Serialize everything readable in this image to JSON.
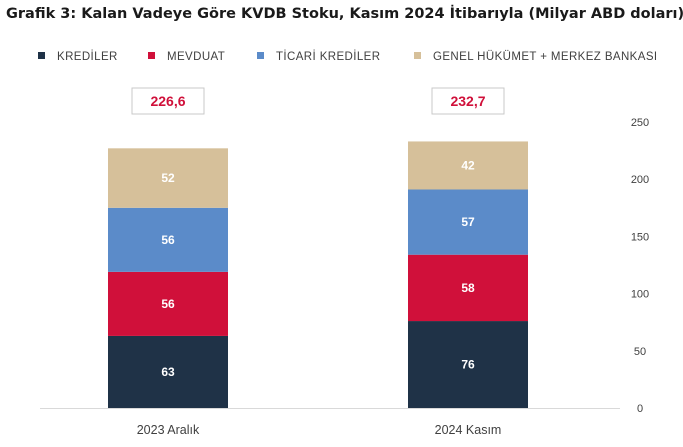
{
  "title": "Grafik 3: Kalan Vadeye Göre KVDB Stoku, Kasım 2024 İtibarıyla (Milyar ABD doları)",
  "colors": {
    "krediler": "#1f3247",
    "mevduat": "#d0103a",
    "ticari_krediler": "#5b8bc9",
    "genel_hukumet": "#d6c09a",
    "total_text": "#d0103a",
    "axis_text": "#404040"
  },
  "chart_data": {
    "type": "bar",
    "stacked": true,
    "title": "Grafik 3: Kalan Vadeye Göre KVDB Stoku, Kasım 2024 İtibarıyla (Milyar ABD doları)",
    "categories": [
      "2023 Aralık",
      "2024 Kasım"
    ],
    "series": [
      {
        "name": "KREDİLER",
        "values": [
          63,
          76
        ],
        "color": "#1f3247"
      },
      {
        "name": "MEVDUAT",
        "values": [
          56,
          58
        ],
        "color": "#d0103a"
      },
      {
        "name": "TİCARİ KREDİLER",
        "values": [
          56,
          57
        ],
        "color": "#5b8bc9"
      },
      {
        "name": "GENEL HÜKÜMET + MERKEZ BANKASI",
        "values": [
          52,
          42
        ],
        "color": "#d6c09a"
      }
    ],
    "totals": [
      "226,6",
      "232,7"
    ],
    "totals_numeric": [
      226.6,
      232.7
    ],
    "ylim": [
      0,
      250
    ],
    "yticks": [
      0,
      50,
      100,
      150,
      200,
      250
    ],
    "y_axis_side": "right",
    "legend_position": "top",
    "grid": false
  }
}
